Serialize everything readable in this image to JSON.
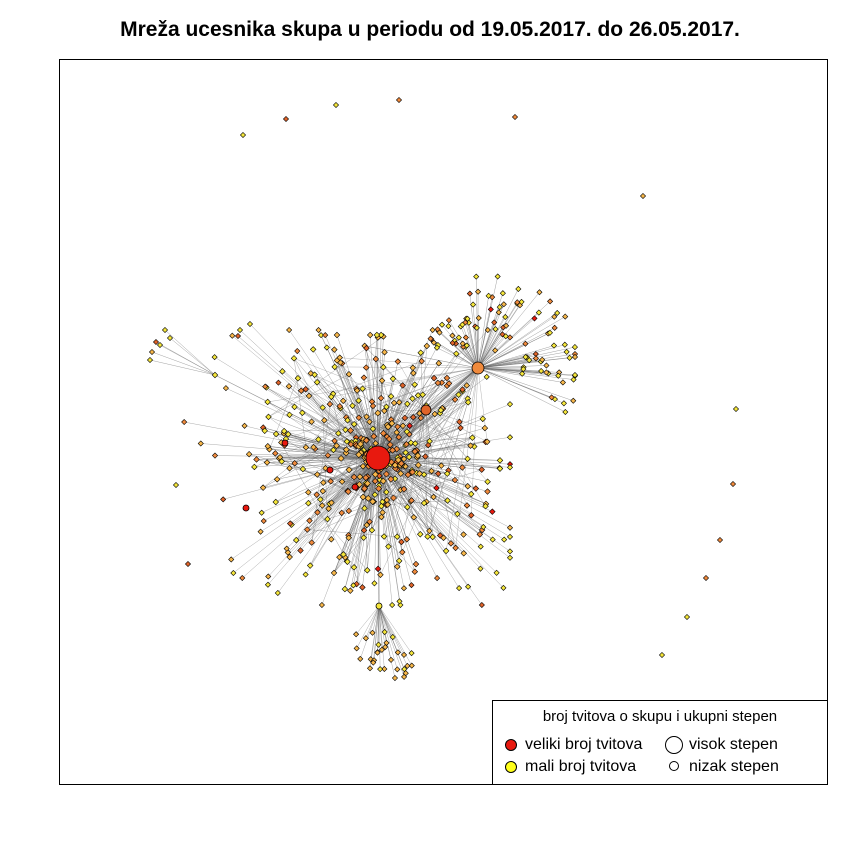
{
  "title": "Mreža ucesnika skupa u periodu od 19.05.2017. do 26.05.2017.",
  "legend": {
    "title": "broj tvitova o skupu i ukupni stepen",
    "items": [
      {
        "label": "veliki broj tvitova",
        "color": "#e8190f"
      },
      {
        "label": "mali broj tvitova",
        "color": "#ffff1a"
      },
      {
        "label": "visok stepen",
        "color": "#ffffff"
      },
      {
        "label": "nizak stepen",
        "color": "#ffffff"
      }
    ]
  },
  "palette": {
    "yellow": "#f5e63a",
    "light_orange": "#f7b74a",
    "orange": "#f08a3c",
    "dark_orange": "#e0642a",
    "red": "#e8190f",
    "edge": "#6a6a6a"
  }
}
